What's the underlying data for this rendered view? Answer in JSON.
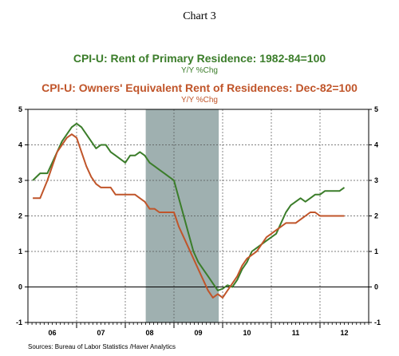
{
  "chart_data": {
    "type": "line",
    "title": "Chart 3",
    "series": [
      {
        "name": "CPI-U: Rent of Primary Residence: 1982-84=100",
        "subtitle": "Y/Y %Chg",
        "color": "#3b7d2a",
        "x": [
          2005.6,
          2005.75,
          2005.9,
          2006.0,
          2006.1,
          2006.2,
          2006.3,
          2006.4,
          2006.5,
          2006.6,
          2006.7,
          2006.8,
          2006.9,
          2007.0,
          2007.1,
          2007.2,
          2007.3,
          2007.4,
          2007.5,
          2007.6,
          2007.7,
          2007.8,
          2007.9,
          2008.0,
          2008.1,
          2008.2,
          2008.3,
          2008.4,
          2008.5,
          2008.6,
          2008.7,
          2008.8,
          2008.9,
          2009.0,
          2009.1,
          2009.2,
          2009.3,
          2009.4,
          2009.5,
          2009.6,
          2009.7,
          2009.8,
          2009.9,
          2010.0,
          2010.1,
          2010.2,
          2010.3,
          2010.4,
          2010.5,
          2010.6,
          2010.7,
          2010.8,
          2010.9,
          2011.0,
          2011.1,
          2011.2,
          2011.3,
          2011.4,
          2011.5,
          2011.6,
          2011.7,
          2011.8,
          2011.9,
          2012.0
        ],
        "values": [
          3.0,
          3.2,
          3.2,
          3.5,
          3.8,
          4.1,
          4.3,
          4.5,
          4.6,
          4.5,
          4.3,
          4.1,
          3.9,
          4.0,
          4.0,
          3.8,
          3.7,
          3.6,
          3.5,
          3.7,
          3.7,
          3.8,
          3.7,
          3.5,
          3.4,
          3.3,
          3.2,
          3.1,
          3.0,
          2.5,
          2.0,
          1.5,
          1.0,
          0.7,
          0.5,
          0.3,
          0.1,
          -0.1,
          -0.05,
          0.05,
          0.0,
          0.2,
          0.5,
          0.7,
          1.0,
          1.1,
          1.2,
          1.3,
          1.4,
          1.5,
          1.8,
          2.1,
          2.3,
          2.4,
          2.5,
          2.4,
          2.5,
          2.6,
          2.6,
          2.7,
          2.7,
          2.7,
          2.7,
          2.8
        ]
      },
      {
        "name": "CPI-U: Owners' Equivalent Rent of Residences: Dec-82=100",
        "subtitle": "Y/Y %Chg",
        "color": "#c0552a",
        "x": [
          2005.6,
          2005.75,
          2005.9,
          2006.0,
          2006.1,
          2006.2,
          2006.3,
          2006.4,
          2006.5,
          2006.6,
          2006.7,
          2006.8,
          2006.9,
          2007.0,
          2007.1,
          2007.2,
          2007.3,
          2007.4,
          2007.5,
          2007.6,
          2007.7,
          2007.8,
          2007.9,
          2008.0,
          2008.1,
          2008.2,
          2008.3,
          2008.4,
          2008.5,
          2008.6,
          2008.7,
          2008.8,
          2008.9,
          2009.0,
          2009.1,
          2009.2,
          2009.3,
          2009.4,
          2009.5,
          2009.6,
          2009.7,
          2009.8,
          2009.9,
          2010.0,
          2010.1,
          2010.2,
          2010.3,
          2010.4,
          2010.5,
          2010.6,
          2010.7,
          2010.8,
          2010.9,
          2011.0,
          2011.1,
          2011.2,
          2011.3,
          2011.4,
          2011.5,
          2011.6,
          2011.7,
          2011.8,
          2011.9,
          2012.0
        ],
        "values": [
          2.5,
          2.5,
          3.0,
          3.4,
          3.8,
          4.0,
          4.2,
          4.3,
          4.2,
          3.8,
          3.4,
          3.1,
          2.9,
          2.8,
          2.8,
          2.8,
          2.6,
          2.6,
          2.6,
          2.6,
          2.6,
          2.5,
          2.4,
          2.2,
          2.2,
          2.1,
          2.1,
          2.1,
          2.1,
          1.7,
          1.4,
          1.1,
          0.8,
          0.5,
          0.2,
          -0.1,
          -0.3,
          -0.2,
          -0.3,
          -0.1,
          0.1,
          0.3,
          0.6,
          0.8,
          0.9,
          1.0,
          1.2,
          1.4,
          1.5,
          1.6,
          1.7,
          1.8,
          1.8,
          1.8,
          1.9,
          2.0,
          2.1,
          2.1,
          2.0,
          2.0,
          2.0,
          2.0,
          2.0,
          2.0
        ]
      }
    ],
    "xlim": [
      2005.5,
      2012.5
    ],
    "ylim": [
      -1,
      5
    ],
    "yticks": [
      -1,
      0,
      1,
      2,
      3,
      4,
      5
    ],
    "xtick_labels": [
      {
        "label": "06",
        "x": 2006.0
      },
      {
        "label": "07",
        "x": 2007.0
      },
      {
        "label": "08",
        "x": 2008.0
      },
      {
        "label": "09",
        "x": 2009.0
      },
      {
        "label": "10",
        "x": 2010.0
      },
      {
        "label": "11",
        "x": 2011.0
      },
      {
        "label": "12",
        "x": 2012.0
      }
    ],
    "year_boundaries": [
      2006.5,
      2007.5,
      2008.5,
      2009.5,
      2010.5,
      2011.5
    ],
    "recession": {
      "start": 2007.92,
      "end": 2009.42,
      "color": "#9fb0b0"
    },
    "zero_line": true,
    "grid": true,
    "source": "Sources:  Bureau of Labor Statistics /Haver Analytics"
  }
}
